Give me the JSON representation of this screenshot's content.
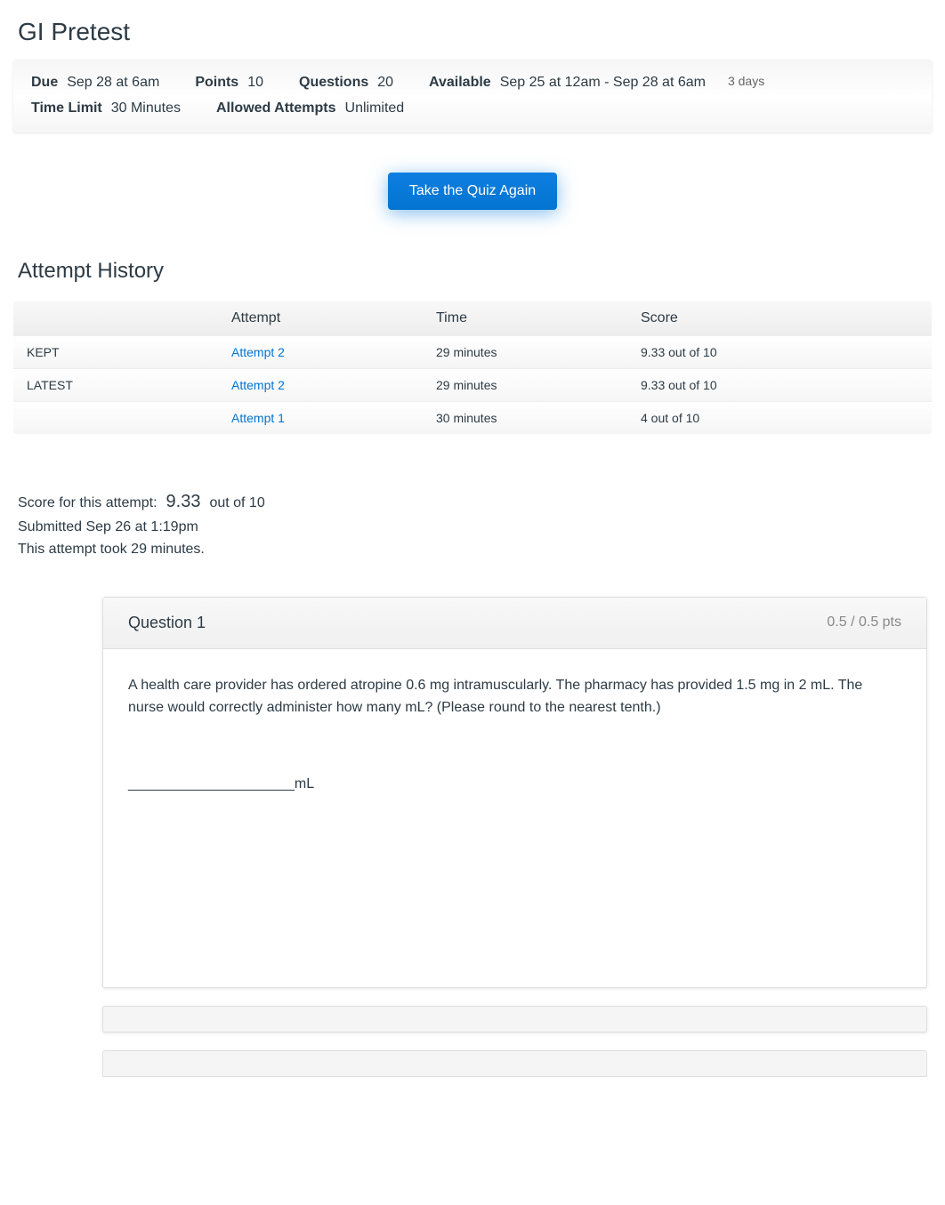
{
  "title": "GI Pretest",
  "details": {
    "due_label": "Due",
    "due_value": "Sep 28 at 6am",
    "points_label": "Points",
    "points_value": "10",
    "questions_label": "Questions",
    "questions_value": "20",
    "available_label": "Available",
    "available_value": "Sep 25 at 12am - Sep 28 at 6am",
    "available_duration": "3 days",
    "time_limit_label": "Time Limit",
    "time_limit_value": "30 Minutes",
    "allowed_attempts_label": "Allowed Attempts",
    "allowed_attempts_value": "Unlimited"
  },
  "take_quiz_button": "Take the Quiz Again",
  "attempt_history": {
    "heading": "Attempt History",
    "columns": {
      "blank": "",
      "attempt": "Attempt",
      "time": "Time",
      "score": "Score"
    },
    "rows": [
      {
        "label": "KEPT",
        "attempt": "Attempt 2",
        "time": "29 minutes",
        "score": "9.33 out of 10"
      },
      {
        "label": "LATEST",
        "attempt": "Attempt 2",
        "time": "29 minutes",
        "score": "9.33 out of 10"
      },
      {
        "label": "",
        "attempt": "Attempt 1",
        "time": "30 minutes",
        "score": "4 out of 10"
      }
    ]
  },
  "score_summary": {
    "prefix": "Score for this attempt:",
    "score": "9.33",
    "suffix": "out of 10",
    "submitted": "Submitted Sep 26 at 1:19pm",
    "duration": "This attempt took 29 minutes."
  },
  "question": {
    "number": "Question 1",
    "points": "0.5 / 0.5 pts",
    "text": "A health care provider has ordered atropine 0.6 mg intramuscularly. The pharmacy has provided 1.5 mg in 2 mL. The nurse would correctly administer how many mL? (Please round to the nearest tenth.)",
    "blank": "_____________________mL"
  },
  "colors": {
    "primary": "#0374d0",
    "text": "#2d3b45",
    "muted": "#888888",
    "background": "#ffffff",
    "card_bg": "#f5f5f5"
  }
}
